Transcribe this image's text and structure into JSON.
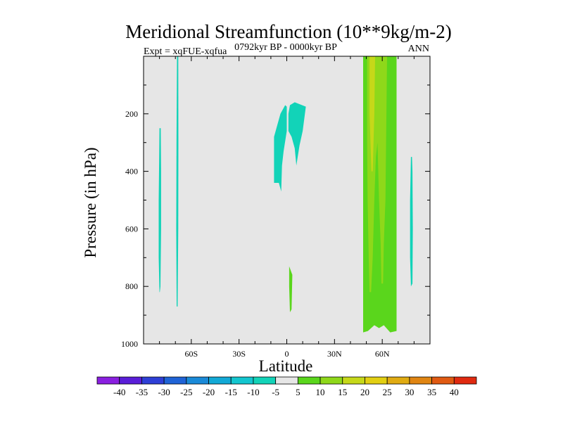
{
  "chart_data": {
    "type": "heatmap",
    "title": "Meridional Streamfunction (10**9kg/m-2)",
    "left_string": "Expt = xqFUE-xqfua",
    "center_string": "0792kyr BP - 0000kyr BP",
    "right_string": "ANN",
    "xlabel": "Latitude",
    "ylabel": "Pressure (in hPa)",
    "xlim": [
      -90,
      90
    ],
    "ylim": [
      1000,
      0
    ],
    "x_ticks": [
      {
        "value": -60,
        "label": "60S"
      },
      {
        "value": -30,
        "label": "30S"
      },
      {
        "value": 0,
        "label": "0"
      },
      {
        "value": 30,
        "label": "30N"
      },
      {
        "value": 60,
        "label": "60N"
      }
    ],
    "y_ticks": [
      {
        "value": 200,
        "label": "200"
      },
      {
        "value": 400,
        "label": "400"
      },
      {
        "value": 600,
        "label": "600"
      },
      {
        "value": 800,
        "label": "800"
      },
      {
        "value": 1000,
        "label": "1000"
      }
    ],
    "background_color": "#e6e6e6",
    "colorbar": {
      "levels": [
        "-40",
        "-35",
        "-30",
        "-25",
        "-20",
        "-15",
        "-10",
        "-5",
        "5",
        "10",
        "15",
        "20",
        "25",
        "30",
        "35",
        "40"
      ],
      "colors": [
        "#8a1fe0",
        "#5a1ed8",
        "#2e3fd6",
        "#1f63d6",
        "#1a8ad8",
        "#12a9d6",
        "#13c6cf",
        "#12d3b8",
        "#e6e6e6",
        "#5ad61c",
        "#8fd81a",
        "#c6d819",
        "#e2cf12",
        "#e0ab12",
        "#e08512",
        "#e05a12",
        "#e02a10"
      ]
    },
    "regions": [
      {
        "name": "sh-highlat-west",
        "color": "#12d3b8",
        "polygon": [
          [
            -80,
            820
          ],
          [
            -80.5,
            700
          ],
          [
            -80.5,
            500
          ],
          [
            -80.2,
            350
          ],
          [
            -80,
            250
          ],
          [
            -79.2,
            250
          ],
          [
            -79,
            400
          ],
          [
            -79,
            600
          ],
          [
            -79.4,
            800
          ],
          [
            -79.8,
            820
          ]
        ]
      },
      {
        "name": "sh-highlat-east",
        "color": "#12d3b8",
        "polygon": [
          [
            -69,
            0
          ],
          [
            -69.3,
            300
          ],
          [
            -69.5,
            600
          ],
          [
            -69.2,
            870
          ],
          [
            -68.6,
            870
          ],
          [
            -68.2,
            600
          ],
          [
            -68.1,
            300
          ],
          [
            -68.2,
            0
          ]
        ]
      },
      {
        "name": "eq-upper-1",
        "color": "#12d3b8",
        "polygon": [
          [
            -8,
            440
          ],
          [
            -8,
            280
          ],
          [
            -6,
            240
          ],
          [
            -4,
            200
          ],
          [
            -1,
            170
          ],
          [
            0,
            175
          ],
          [
            0,
            260
          ],
          [
            -2,
            330
          ],
          [
            -3,
            380
          ],
          [
            -3.5,
            470
          ],
          [
            -5,
            440
          ]
        ]
      },
      {
        "name": "eq-upper-2",
        "color": "#12d3b8",
        "polygon": [
          [
            2,
            170
          ],
          [
            5,
            160
          ],
          [
            12,
            175
          ],
          [
            10,
            260
          ],
          [
            8,
            310
          ],
          [
            6,
            380
          ],
          [
            5,
            320
          ],
          [
            3,
            280
          ],
          [
            1,
            260
          ],
          [
            1,
            200
          ]
        ]
      },
      {
        "name": "eq-lower",
        "color": "#5ad61c",
        "polygon": [
          [
            1.5,
            730
          ],
          [
            3.5,
            760
          ],
          [
            3,
            880
          ],
          [
            2,
            890
          ],
          [
            1.5,
            800
          ]
        ]
      },
      {
        "name": "nh-cell-outer",
        "color": "#5ad61c",
        "polygon": [
          [
            48,
            0
          ],
          [
            48,
            960
          ],
          [
            51,
            955
          ],
          [
            55,
            935
          ],
          [
            58,
            945
          ],
          [
            61,
            935
          ],
          [
            65,
            960
          ],
          [
            69,
            955
          ],
          [
            69,
            0
          ]
        ]
      },
      {
        "name": "nh-cell-mid",
        "color": "#8fd81a",
        "polygon": [
          [
            50.5,
            0
          ],
          [
            50.5,
            300
          ],
          [
            50.8,
            500
          ],
          [
            51.5,
            700
          ],
          [
            52,
            820
          ],
          [
            53,
            820
          ],
          [
            54,
            700
          ],
          [
            55,
            500
          ],
          [
            56,
            350
          ],
          [
            57,
            300
          ],
          [
            58,
            500
          ],
          [
            59,
            650
          ],
          [
            59.5,
            790
          ],
          [
            60.5,
            790
          ],
          [
            61,
            650
          ],
          [
            62,
            500
          ],
          [
            63,
            0
          ]
        ]
      },
      {
        "name": "nh-cell-core",
        "color": "#c6d819",
        "polygon": [
          [
            52,
            0
          ],
          [
            52,
            200
          ],
          [
            53.2,
            400
          ],
          [
            54,
            400
          ],
          [
            55,
            200
          ],
          [
            55.5,
            0
          ]
        ]
      },
      {
        "name": "nh-highlat",
        "color": "#12d3b8",
        "polygon": [
          [
            78,
            350
          ],
          [
            77.5,
            500
          ],
          [
            77.5,
            700
          ],
          [
            78,
            800
          ],
          [
            79,
            790
          ],
          [
            79.2,
            600
          ],
          [
            79,
            400
          ],
          [
            78.7,
            350
          ]
        ]
      }
    ]
  }
}
